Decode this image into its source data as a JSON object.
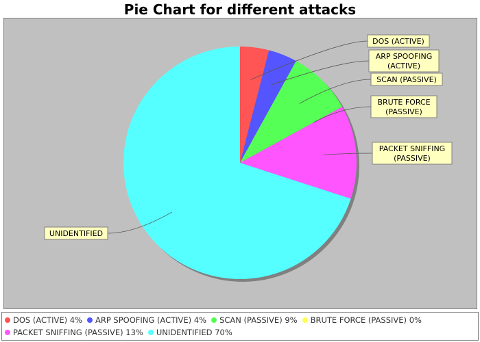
{
  "chart_data": {
    "type": "pie",
    "title": "Pie Chart for different attacks",
    "categories": [
      "DOS (ACTIVE)",
      "ARP SPOOFING (ACTIVE)",
      "SCAN (PASSIVE)",
      "BRUTE FORCE (PASSIVE)",
      "PACKET SNIFFING (PASSIVE)",
      "UNIDENTIFIED"
    ],
    "values": [
      4,
      4,
      9,
      0,
      13,
      70
    ],
    "colors": [
      "#ff5555",
      "#5555ff",
      "#55ff55",
      "#ffff55",
      "#ff55ff",
      "#55ffff"
    ],
    "slice_labels": [
      [
        "DOS (ACTIVE)"
      ],
      [
        "ARP SPOOFING",
        "(ACTIVE)"
      ],
      [
        "SCAN (PASSIVE)"
      ],
      [
        "BRUTE FORCE",
        "(PASSIVE)"
      ],
      [
        "PACKET SNIFFING",
        "(PASSIVE)"
      ],
      [
        "UNIDENTIFIED"
      ]
    ],
    "legend": [
      "DOS (ACTIVE) 4%",
      "ARP SPOOFING (ACTIVE) 4%",
      "SCAN (PASSIVE) 9%",
      "BRUTE FORCE (PASSIVE) 0%",
      "PACKET SNIFFING (PASSIVE) 13%",
      "UNIDENTIFIED 70%"
    ],
    "legend_position": "bottom",
    "background": "#c0c0c0"
  }
}
